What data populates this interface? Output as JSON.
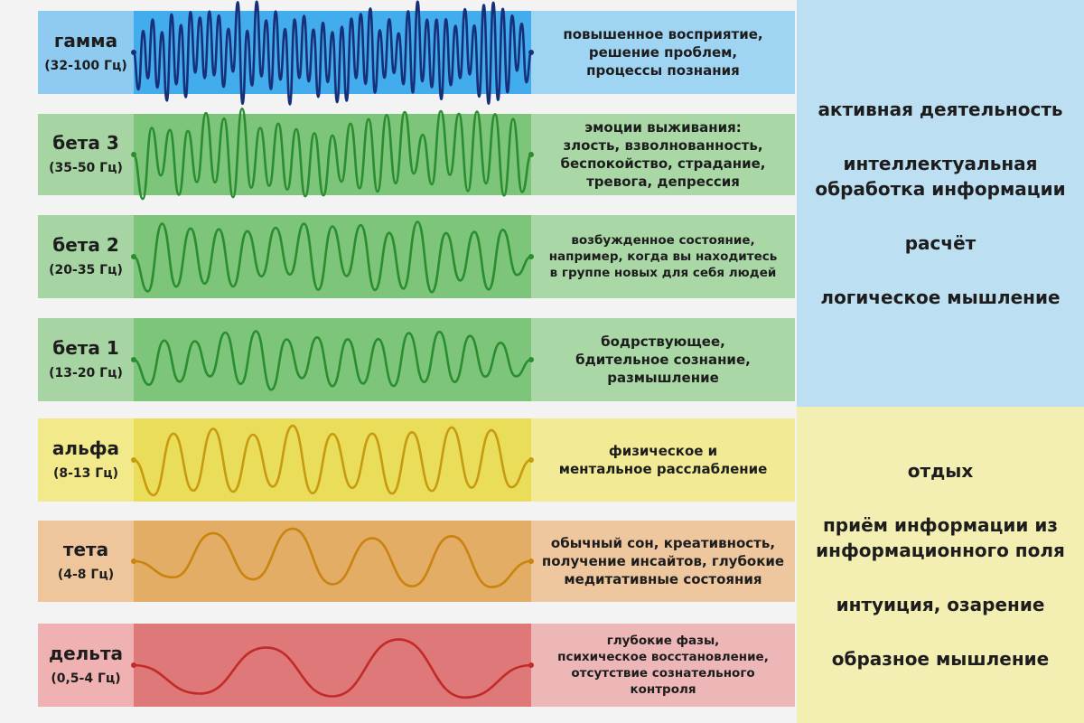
{
  "bands": [
    {
      "name": "гамма",
      "range": "(32-100 Гц)",
      "description": [
        "повышенное восприятие,",
        "решение проблем,",
        "процессы познания"
      ],
      "label_color": "#8fcbf0",
      "wave_bg": "#42acec",
      "desc_bg": "#9fd4f3",
      "wave_color": "#16307a",
      "wave_type": "gamma"
    },
    {
      "name": "бета 3",
      "range": "(35-50 Гц)",
      "description": [
        "эмоции выживания:",
        "злость, взволнованность,",
        "беспокойство, страдание,",
        "тревога, депрессия"
      ],
      "label_color": "#a6d4a2",
      "wave_bg": "#7cc57a",
      "desc_bg": "#a9d7a5",
      "wave_color": "#2a8d2f",
      "wave_type": "beta3"
    },
    {
      "name": "бета 2",
      "range": "(20-35 Гц)",
      "description": [
        "возбужденное состояние,",
        "например, когда вы находитесь",
        "в группе новых для себя людей"
      ],
      "label_color": "#a6d4a2",
      "wave_bg": "#7cc57a",
      "desc_bg": "#a9d7a5",
      "wave_color": "#2a8d2f",
      "wave_type": "beta2"
    },
    {
      "name": "бета 1",
      "range": "(13-20 Гц)",
      "description": [
        "бодрствующее,",
        "бдительное сознание,",
        "размышление"
      ],
      "label_color": "#a6d4a2",
      "wave_bg": "#7cc57a",
      "desc_bg": "#a9d7a5",
      "wave_color": "#2a8d2f",
      "wave_type": "beta1"
    },
    {
      "name": "альфа",
      "range": "(8-13 Гц)",
      "description": [
        "физическое и",
        "ментальное расслабление"
      ],
      "label_color": "#f1e98a",
      "wave_bg": "#e9dd5a",
      "desc_bg": "#f2ea95",
      "wave_color": "#c89a10",
      "wave_type": "alpha"
    },
    {
      "name": "тета",
      "range": "(4-8 Гц)",
      "description": [
        "обычный сон, креативность,",
        "получение инсайтов, глубокие",
        "медитативные состояния"
      ],
      "label_color": "#efc69c",
      "wave_bg": "#e4ad65",
      "desc_bg": "#eec79e",
      "wave_color": "#c8840e",
      "wave_type": "theta"
    },
    {
      "name": "дельта",
      "range": "(0,5-4 Гц)",
      "description": [
        "глубокие фазы,",
        "психическое восстановление,",
        "отсутствие сознательного контроля"
      ],
      "label_color": "#efb1b1",
      "wave_bg": "#df7878",
      "desc_bg": "#eeb7b7",
      "wave_color": "#c32a2a",
      "wave_type": "delta"
    }
  ],
  "right_panels": [
    {
      "background": "#bddff2",
      "items": [
        [
          "активная деятельность"
        ],
        [
          "интеллектуальная",
          "обработка информации"
        ],
        [
          "расчёт"
        ],
        [
          "логическое мышление"
        ]
      ]
    },
    {
      "background": "#f3eeb2",
      "items": [
        [
          "отдых"
        ],
        [
          "приём информации из",
          "информационного поля"
        ],
        [
          "интуиция, озарение"
        ],
        [
          "образное мышление"
        ]
      ]
    }
  ]
}
